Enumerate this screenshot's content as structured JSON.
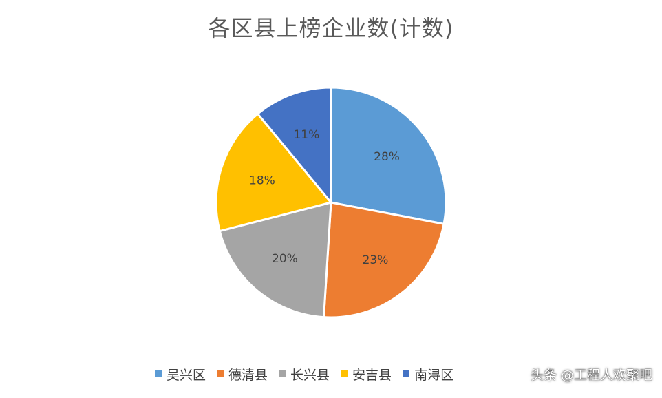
{
  "chart_data": {
    "type": "pie",
    "title": "各区县上榜企业数(计数)",
    "categories": [
      "吴兴区",
      "德清县",
      "长兴县",
      "安吉县",
      "南浔区"
    ],
    "values": [
      28,
      23,
      20,
      18,
      11
    ],
    "labels": [
      "28%",
      "23%",
      "20%",
      "18%",
      "11%"
    ],
    "colors": [
      "#5B9BD5",
      "#ED7D31",
      "#A5A5A5",
      "#FFC000",
      "#4472C4"
    ],
    "legend_position": "bottom"
  },
  "watermark": "头条 @工程人欢聚吧"
}
